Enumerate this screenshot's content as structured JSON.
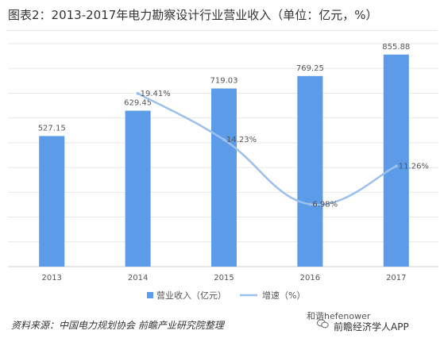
{
  "chart_data": {
    "type": "bar",
    "title": "图表2：2013-2017年电力勘察设计行业营业收入（单位：亿元，%）",
    "categories": [
      "2013",
      "2014",
      "2015",
      "2016",
      "2017"
    ],
    "series": [
      {
        "name": "营业收入（亿元）",
        "type": "bar",
        "values": [
          527.15,
          629.45,
          719.03,
          769.25,
          855.88
        ],
        "labels": [
          "527.15",
          "629.45",
          "719.03",
          "769.25",
          "855.88"
        ],
        "color": "#5b9be8"
      },
      {
        "name": "增速（%）",
        "type": "line",
        "values": [
          null,
          19.41,
          14.23,
          6.98,
          11.26
        ],
        "labels": [
          "",
          "19.41%",
          "14.23%",
          "6.98%",
          "11.26%"
        ],
        "color": "#9cc0ee"
      }
    ],
    "ylim_bar": [
      0,
      900
    ],
    "ylim_line": [
      0,
      25
    ],
    "grid": true,
    "legend_position": "bottom"
  },
  "source": "资料来源：中国电力规划协会 前瞻产业研究院整理",
  "watermark": {
    "text": "和谐hefenower",
    "app": "前瞻经济学人APP",
    "icon": "wechat-icon"
  }
}
